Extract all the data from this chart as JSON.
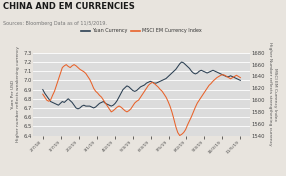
{
  "title": "CHINA AND EM CURRENCIES",
  "subtitle": "Sources: Bloomberg Data as of 11/5/2019.",
  "ylabel_left": "Yuan Per USD\nHigher number reflects weakening currency",
  "ylabel_right": "MSCI EM Currency Index\nHigher Number reflects strengthening currency",
  "ylim_left": [
    6.4,
    7.3
  ],
  "ylim_right": [
    1540,
    1680
  ],
  "yticks_left": [
    6.4,
    6.5,
    6.6,
    6.7,
    6.8,
    6.9,
    7.0,
    7.1,
    7.2,
    7.3
  ],
  "yticks_right": [
    1540,
    1560,
    1580,
    1600,
    1620,
    1640,
    1660,
    1680
  ],
  "legend_labels": [
    "Yuan Currency",
    "MSCI EM Currency Index"
  ],
  "line_colors": [
    "#2b3f52",
    "#e8622a"
  ],
  "background_color": "#dcdcdc",
  "fig_background": "#e8e4de",
  "title_color": "#1a1a1a",
  "subtitle_color": "#777777",
  "x_ticks": [
    "2/7/18",
    "1/7/19",
    "2/2/19",
    "3/1/19",
    "4/2/19",
    "5/3/19",
    "6/3/19",
    "7/5/19",
    "8/2/19",
    "9/3/19",
    "10/3/19",
    "11/5/19"
  ],
  "yuan": [
    6.9,
    6.86,
    6.83,
    6.8,
    6.77,
    6.76,
    6.75,
    6.74,
    6.73,
    6.75,
    6.77,
    6.76,
    6.78,
    6.8,
    6.78,
    6.76,
    6.73,
    6.7,
    6.69,
    6.7,
    6.72,
    6.73,
    6.72,
    6.72,
    6.72,
    6.71,
    6.7,
    6.71,
    6.73,
    6.75,
    6.76,
    6.77,
    6.75,
    6.74,
    6.73,
    6.72,
    6.73,
    6.75,
    6.78,
    6.82,
    6.86,
    6.9,
    6.92,
    6.94,
    6.93,
    6.91,
    6.89,
    6.88,
    6.89,
    6.91,
    6.93,
    6.94,
    6.95,
    6.97,
    6.98,
    6.99,
    6.98,
    6.97,
    6.97,
    6.98,
    6.99,
    7.0,
    7.01,
    7.02,
    7.04,
    7.06,
    7.08,
    7.1,
    7.12,
    7.15,
    7.18,
    7.2,
    7.19,
    7.17,
    7.15,
    7.13,
    7.1,
    7.08,
    7.07,
    7.08,
    7.1,
    7.11,
    7.1,
    7.09,
    7.08,
    7.09,
    7.1,
    7.11,
    7.1,
    7.09,
    7.08,
    7.07,
    7.06,
    7.05,
    7.04,
    7.04,
    7.05,
    7.04,
    7.03,
    7.02,
    7.01,
    7.0
  ],
  "msci": [
    1610,
    1605,
    1600,
    1598,
    1600,
    1608,
    1615,
    1625,
    1635,
    1645,
    1655,
    1658,
    1660,
    1657,
    1655,
    1658,
    1660,
    1658,
    1655,
    1652,
    1650,
    1648,
    1645,
    1640,
    1635,
    1628,
    1620,
    1615,
    1612,
    1608,
    1605,
    1600,
    1595,
    1590,
    1585,
    1580,
    1582,
    1585,
    1588,
    1590,
    1588,
    1585,
    1582,
    1580,
    1582,
    1585,
    1590,
    1595,
    1598,
    1600,
    1605,
    1610,
    1615,
    1620,
    1625,
    1628,
    1630,
    1628,
    1625,
    1622,
    1618,
    1615,
    1610,
    1605,
    1598,
    1590,
    1580,
    1568,
    1555,
    1545,
    1540,
    1542,
    1545,
    1550,
    1558,
    1565,
    1572,
    1580,
    1588,
    1595,
    1600,
    1605,
    1610,
    1615,
    1620,
    1625,
    1628,
    1632,
    1635,
    1638,
    1640,
    1642,
    1643,
    1642,
    1640,
    1638,
    1636,
    1638,
    1640,
    1642,
    1640,
    1638
  ]
}
